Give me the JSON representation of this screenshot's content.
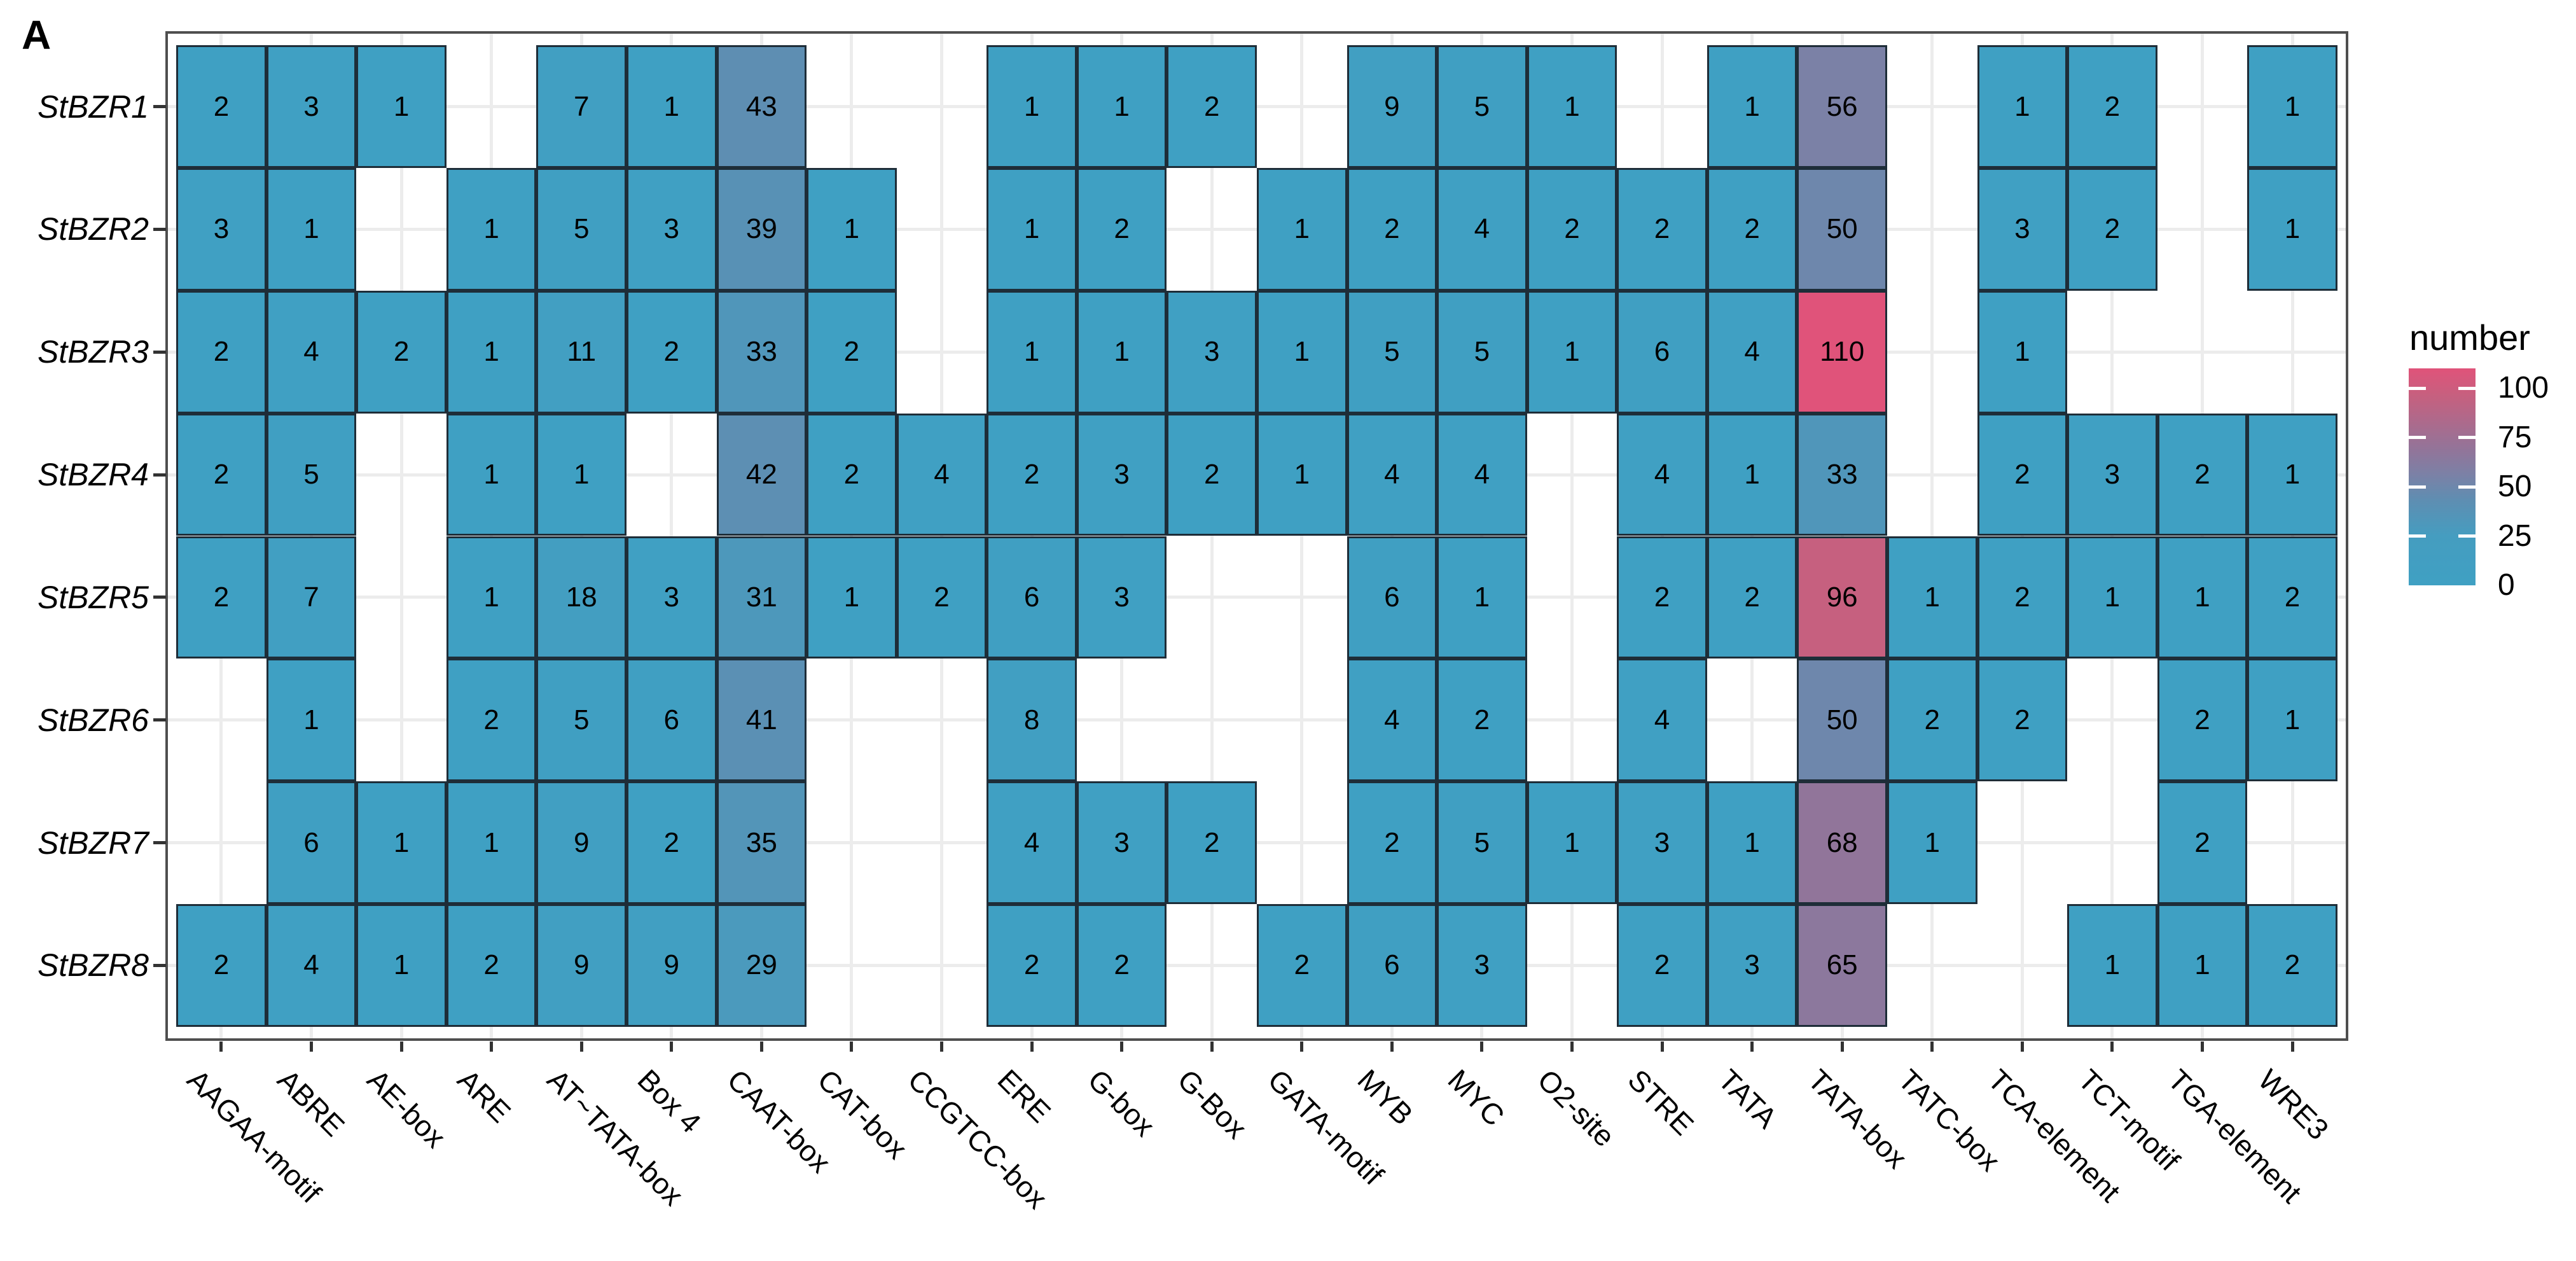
{
  "panel_label": "A",
  "legend": {
    "title": "number",
    "ticks": [
      100,
      75,
      50,
      25,
      0
    ],
    "min": 0,
    "max": 110
  },
  "colors": {
    "base_blue": "#3FA0C3",
    "high_pink": "#E0537A",
    "tile_border": "#1E2D38",
    "panel_border": "#4F4F4F",
    "grid": "#ECECEC",
    "tick": "#333333",
    "gradient_stops": [
      [
        0,
        "#3FA0C3"
      ],
      [
        25,
        "#459DC0"
      ],
      [
        43,
        "#5E8EB2"
      ],
      [
        56,
        "#7B81A6"
      ],
      [
        68,
        "#91759A"
      ],
      [
        96,
        "#C6607F"
      ],
      [
        110,
        "#E0537A"
      ]
    ]
  },
  "chart_data": {
    "type": "heatmap",
    "title": "",
    "legend_title": "number",
    "legend_position": "right",
    "grid": true,
    "value_range": [
      0,
      110
    ],
    "x_categories": [
      "AAGAA-motif",
      "ABRE",
      "AE-box",
      "ARE",
      "AT~TATA-box",
      "Box 4",
      "CAAT-box",
      "CAT-box",
      "CCGTCC-box",
      "ERE",
      "G-box",
      "G-Box",
      "GATA-motif",
      "MYB",
      "MYC",
      "O2-site",
      "STRE",
      "TATA",
      "TATA-box",
      "TATC-box",
      "TCA-element",
      "TCT-motif",
      "TGA-element",
      "WRE3"
    ],
    "y_categories": [
      "StBZR1",
      "StBZR2",
      "StBZR3",
      "StBZR4",
      "StBZR5",
      "StBZR6",
      "StBZR7",
      "StBZR8"
    ],
    "series": [
      {
        "name": "StBZR1",
        "values": [
          2,
          3,
          1,
          null,
          7,
          1,
          43,
          null,
          null,
          1,
          1,
          2,
          null,
          9,
          5,
          1,
          null,
          1,
          56,
          null,
          1,
          2,
          null,
          1
        ]
      },
      {
        "name": "StBZR2",
        "values": [
          3,
          1,
          null,
          1,
          5,
          3,
          39,
          1,
          null,
          1,
          2,
          null,
          1,
          2,
          4,
          2,
          2,
          2,
          50,
          null,
          3,
          2,
          null,
          1
        ]
      },
      {
        "name": "StBZR3",
        "values": [
          2,
          4,
          2,
          1,
          11,
          2,
          33,
          2,
          null,
          1,
          1,
          3,
          1,
          5,
          5,
          1,
          6,
          4,
          110,
          null,
          1,
          null,
          null,
          null
        ]
      },
      {
        "name": "StBZR4",
        "values": [
          2,
          5,
          null,
          1,
          1,
          null,
          42,
          2,
          4,
          2,
          3,
          2,
          1,
          4,
          4,
          null,
          4,
          1,
          33,
          null,
          2,
          3,
          2,
          1
        ]
      },
      {
        "name": "StBZR5",
        "values": [
          2,
          7,
          null,
          1,
          18,
          3,
          31,
          1,
          2,
          6,
          3,
          null,
          null,
          6,
          1,
          null,
          2,
          2,
          96,
          1,
          2,
          1,
          1,
          2
        ]
      },
      {
        "name": "StBZR6",
        "values": [
          null,
          1,
          null,
          2,
          5,
          6,
          41,
          null,
          null,
          8,
          null,
          null,
          null,
          4,
          2,
          null,
          4,
          null,
          50,
          2,
          2,
          null,
          2,
          1
        ]
      },
      {
        "name": "StBZR7",
        "values": [
          null,
          6,
          1,
          1,
          9,
          2,
          35,
          null,
          null,
          4,
          3,
          2,
          null,
          2,
          5,
          1,
          3,
          1,
          68,
          1,
          null,
          null,
          2,
          null
        ]
      },
      {
        "name": "StBZR8",
        "values": [
          2,
          4,
          1,
          2,
          9,
          9,
          29,
          null,
          null,
          2,
          2,
          null,
          2,
          6,
          3,
          null,
          2,
          3,
          65,
          null,
          null,
          1,
          1,
          2
        ]
      }
    ]
  }
}
